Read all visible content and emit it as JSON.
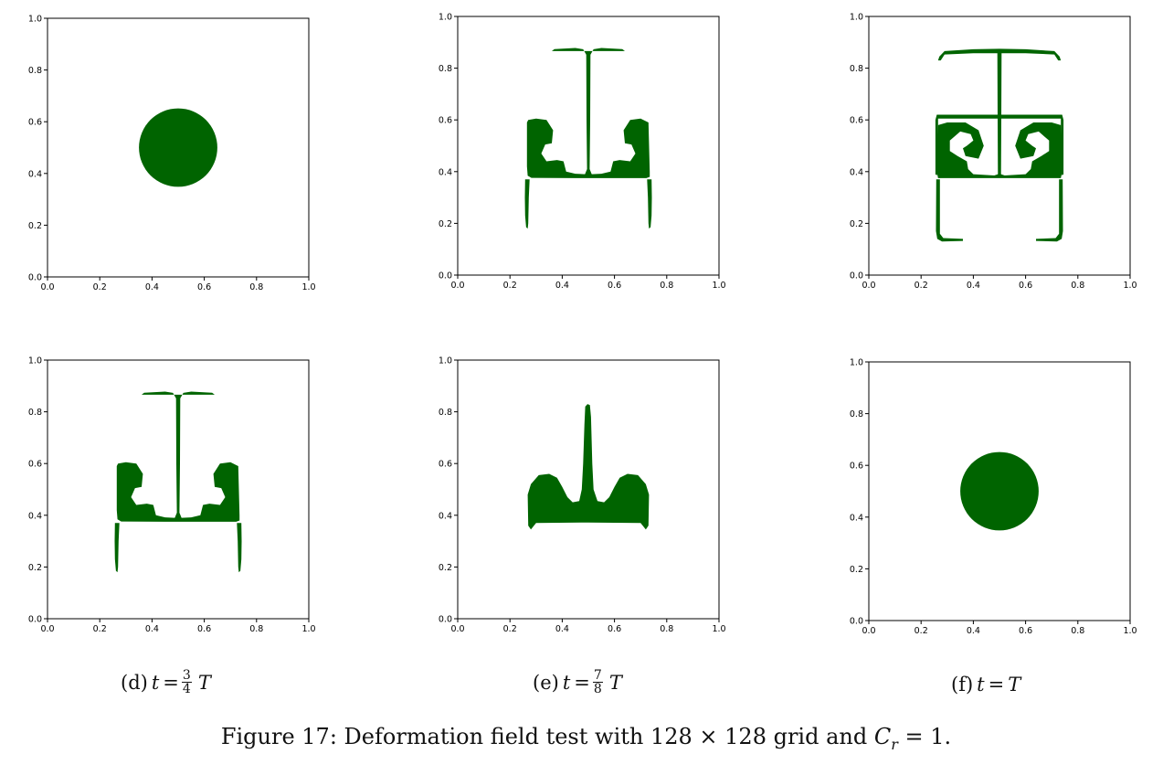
{
  "panels": [
    {
      "id": "a",
      "x_ticks": [
        "0.0",
        "0.2",
        "0.4",
        "0.6",
        "0.8",
        "1.0"
      ],
      "y_ticks": [
        "0.0",
        "0.2",
        "0.4",
        "0.6",
        "0.8",
        "1.0"
      ],
      "shape": "circle",
      "fill": "#006400"
    },
    {
      "id": "b",
      "x_ticks": [
        "0.0",
        "0.2",
        "0.4",
        "0.6",
        "0.8",
        "1.0"
      ],
      "y_ticks": [
        "0.0",
        "0.2",
        "0.4",
        "0.6",
        "0.8",
        "1.0"
      ],
      "shape": "deformed-t-half",
      "fill": "#006400"
    },
    {
      "id": "c",
      "x_ticks": [
        "0.0",
        "0.2",
        "0.4",
        "0.6",
        "0.8",
        "1.0"
      ],
      "y_ticks": [
        "0.0",
        "0.2",
        "0.4",
        "0.6",
        "0.8",
        "1.0"
      ],
      "shape": "deformed-t-full",
      "fill": "#006400"
    },
    {
      "id": "d",
      "x_ticks": [
        "0.0",
        "0.2",
        "0.4",
        "0.6",
        "0.8",
        "1.0"
      ],
      "y_ticks": [
        "0.0",
        "0.2",
        "0.4",
        "0.6",
        "0.8",
        "1.0"
      ],
      "shape": "deformed-t-half",
      "fill": "#006400"
    },
    {
      "id": "e",
      "x_ticks": [
        "0.0",
        "0.2",
        "0.4",
        "0.6",
        "0.8",
        "1.0"
      ],
      "y_ticks": [
        "0.0",
        "0.2",
        "0.4",
        "0.6",
        "0.8",
        "1.0"
      ],
      "shape": "deformed-t-small",
      "fill": "#006400"
    },
    {
      "id": "f",
      "x_ticks": [
        "0.0",
        "0.2",
        "0.4",
        "0.6",
        "0.8",
        "1.0"
      ],
      "y_ticks": [
        "0.0",
        "0.2",
        "0.4",
        "0.6",
        "0.8",
        "1.0"
      ],
      "shape": "circle",
      "fill": "#006400"
    }
  ],
  "captions": {
    "d": {
      "label": "(d)",
      "var": "t",
      "eq": "=",
      "num": "3",
      "den": "4",
      "tail": "T"
    },
    "e": {
      "label": "(e)",
      "var": "t",
      "eq": "=",
      "num": "7",
      "den": "8",
      "tail": "T"
    },
    "f": {
      "label": "(f)",
      "var": "t",
      "eq": "=",
      "tail": "T"
    }
  },
  "figure_caption": {
    "prefix": "Figure 17: Deformation field test with 128 × 128 grid and ",
    "var": "C",
    "sub": "r",
    "suffix": " = 1."
  }
}
